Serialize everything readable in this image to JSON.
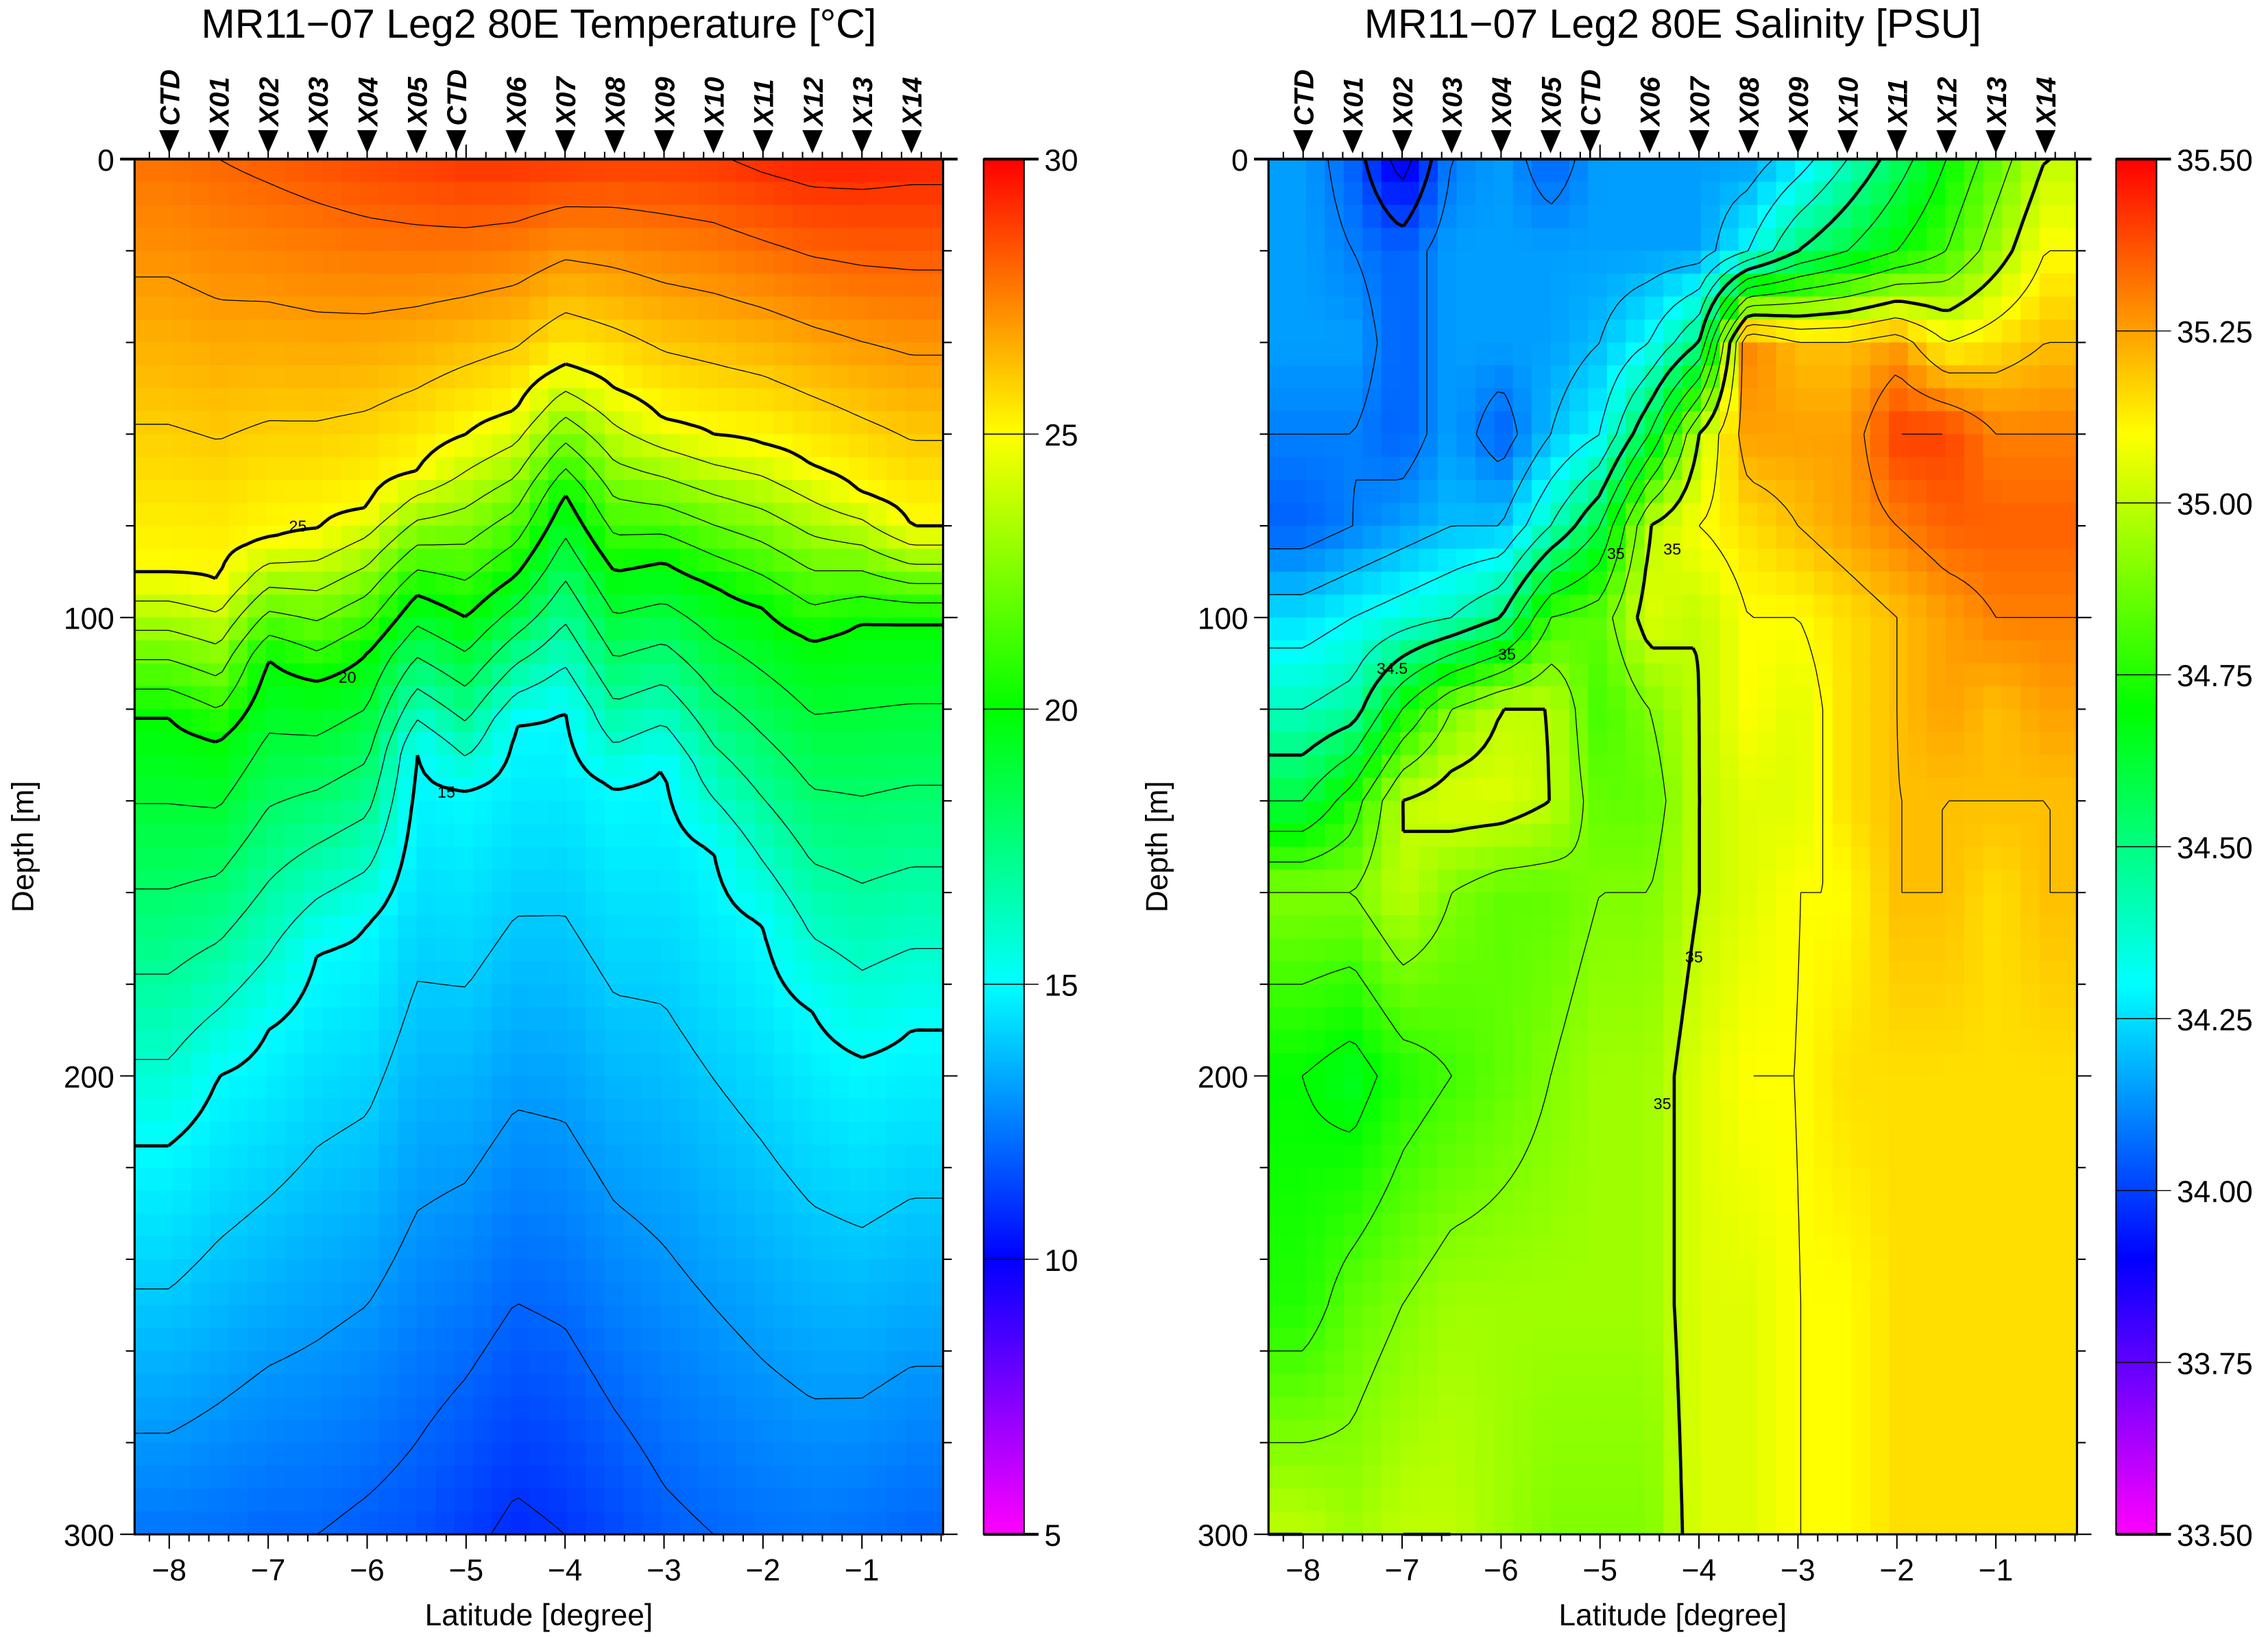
{
  "chart_data": [
    {
      "type": "heatmap",
      "title": "MR11−07 Leg2  80E  Temperature [°C]",
      "xlabel": "Latitude [degree]",
      "ylabel": "Depth [m]",
      "xlim": [
        -8.35,
        -0.18
      ],
      "ylim": [
        300,
        0
      ],
      "x_ticks": [
        -8,
        -7,
        -6,
        -5,
        -4,
        -3,
        -2,
        -1
      ],
      "x_tick_labels": [
        "−8",
        "−7",
        "−6",
        "−5",
        "−4",
        "−3",
        "−2",
        "−1"
      ],
      "y_ticks": [
        0,
        100,
        200,
        300
      ],
      "y_tick_labels": [
        "0",
        "100",
        "200",
        "300"
      ],
      "colorbar": {
        "range": [
          5,
          30
        ],
        "ticks": [
          30,
          25,
          20,
          15,
          10,
          5
        ],
        "tick_labels": [
          "30",
          "25",
          "20",
          "15",
          "10",
          "5"
        ]
      },
      "colormap": [
        "#ff00ff",
        "#0000ff",
        "#00ffff",
        "#00ff00",
        "#ffff00",
        "#ff8000",
        "#ff0000"
      ],
      "stations": [
        {
          "name": "CTD",
          "lat": -8.0
        },
        {
          "name": "X01",
          "lat": -7.5
        },
        {
          "name": "X02",
          "lat": -7.0
        },
        {
          "name": "X03",
          "lat": -6.5
        },
        {
          "name": "X04",
          "lat": -6.0
        },
        {
          "name": "X05",
          "lat": -5.5
        },
        {
          "name": "CTD",
          "lat": -5.1
        },
        {
          "name": "X06",
          "lat": -4.5
        },
        {
          "name": "X07",
          "lat": -4.0
        },
        {
          "name": "X08",
          "lat": -3.5
        },
        {
          "name": "X09",
          "lat": -3.0
        },
        {
          "name": "X10",
          "lat": -2.5
        },
        {
          "name": "X11",
          "lat": -2.0
        },
        {
          "name": "X12",
          "lat": -1.5
        },
        {
          "name": "X13",
          "lat": -1.0
        },
        {
          "name": "X14",
          "lat": -0.5
        }
      ],
      "contour_interval": 1,
      "bold_contours": [
        15,
        20,
        25
      ],
      "contour_labels": [
        "25",
        "20",
        "15"
      ],
      "data": {
        "lat": [
          -8,
          -7.5,
          -7,
          -6.5,
          -6,
          -5.5,
          -5,
          -4.5,
          -4,
          -3.5,
          -3,
          -2.5,
          -2,
          -1.5,
          -1,
          -0.5
        ],
        "surface_temp": [
          27.8,
          28,
          28.2,
          28.4,
          28.6,
          28.8,
          29,
          29,
          28.9,
          28.8,
          28.8,
          28.9,
          29.2,
          29.4,
          29.4,
          29.3
        ],
        "isotherm_depth_25": [
          90,
          92,
          83,
          81,
          76,
          68,
          60,
          55,
          45,
          50,
          57,
          60,
          62,
          67,
          73,
          80
        ],
        "isotherm_depth_20": [
          122,
          127,
          109,
          114,
          108,
          95,
          100,
          91,
          73,
          90,
          88,
          93,
          98,
          105,
          101,
          101
        ],
        "isotherm_depth_15": [
          215,
          200,
          190,
          173,
          167,
          129,
          138,
          123,
          120,
          137,
          132,
          151,
          167,
          186,
          196,
          190
        ],
        "temp_300m": [
          12.3,
          12.2,
          12,
          12,
          11.8,
          11.6,
          11.2,
          10.8,
          11,
          11.4,
          11.8,
          12,
          12.2,
          12.3,
          12.2,
          12
        ]
      }
    },
    {
      "type": "heatmap",
      "title": "MR11−07 Leg2  80E  Salinity [PSU]",
      "xlabel": "Latitude [degree]",
      "ylabel": "Depth [m]",
      "xlim": [
        -8.35,
        -0.18
      ],
      "ylim": [
        300,
        0
      ],
      "x_ticks": [
        -8,
        -7,
        -6,
        -5,
        -4,
        -3,
        -2,
        -1
      ],
      "x_tick_labels": [
        "−8",
        "−7",
        "−6",
        "−5",
        "−4",
        "−3",
        "−2",
        "−1"
      ],
      "y_ticks": [
        0,
        100,
        200,
        300
      ],
      "y_tick_labels": [
        "0",
        "100",
        "200",
        "300"
      ],
      "colorbar": {
        "range": [
          33.5,
          35.5
        ],
        "ticks": [
          35.5,
          35.25,
          35.0,
          34.75,
          34.5,
          34.25,
          34.0,
          33.75,
          33.5
        ],
        "tick_labels": [
          "35.50",
          "35.25",
          "35.00",
          "34.75",
          "34.50",
          "34.25",
          "34.00",
          "33.75",
          "33.50"
        ]
      },
      "colormap": [
        "#ff00ff",
        "#0000ff",
        "#00ffff",
        "#00ff00",
        "#ffff00",
        "#ff8000",
        "#ff0000"
      ],
      "stations": [
        {
          "name": "CTD",
          "lat": -8.0
        },
        {
          "name": "X01",
          "lat": -7.5
        },
        {
          "name": "X02",
          "lat": -7.0
        },
        {
          "name": "X03",
          "lat": -6.5
        },
        {
          "name": "X04",
          "lat": -6.0
        },
        {
          "name": "X05",
          "lat": -5.5
        },
        {
          "name": "CTD",
          "lat": -5.1
        },
        {
          "name": "X06",
          "lat": -4.5
        },
        {
          "name": "X07",
          "lat": -4.0
        },
        {
          "name": "X08",
          "lat": -3.5
        },
        {
          "name": "X09",
          "lat": -3.0
        },
        {
          "name": "X10",
          "lat": -2.5
        },
        {
          "name": "X11",
          "lat": -2.0
        },
        {
          "name": "X12",
          "lat": -1.5
        },
        {
          "name": "X13",
          "lat": -1.0
        },
        {
          "name": "X14",
          "lat": -0.5
        }
      ],
      "contour_interval": 0.1,
      "bold_contours": [
        34.0,
        34.5,
        35.0
      ],
      "contour_labels": [
        "34.5",
        "35",
        "35",
        "35",
        "35",
        "35"
      ],
      "data": {
        "lat": [
          -8,
          -7.5,
          -7,
          -6.5,
          -6,
          -5.5,
          -5,
          -4.5,
          -4,
          -3.5,
          -3,
          -2.5,
          -2,
          -1.5,
          -1,
          -0.5
        ],
        "depth": [
          0,
          20,
          40,
          60,
          80,
          100,
          120,
          140,
          160,
          200,
          250,
          300
        ],
        "salinity": [
          [
            34.15,
            34.15,
            34.15,
            34.1,
            34.05,
            34.25,
            34.4,
            34.6,
            34.9,
            34.7,
            34.75,
            35.0
          ],
          [
            34.05,
            34.1,
            34.15,
            34.1,
            34.1,
            34.3,
            34.45,
            34.75,
            34.9,
            34.65,
            34.85,
            34.95
          ],
          [
            33.85,
            34.05,
            34.05,
            34.05,
            34.15,
            34.35,
            34.7,
            35.0,
            35.0,
            34.75,
            34.9,
            35.0
          ],
          [
            34.1,
            34.15,
            34.15,
            34.15,
            34.2,
            34.4,
            34.9,
            35.05,
            34.9,
            34.8,
            34.95,
            35.0
          ],
          [
            34.15,
            34.15,
            34.15,
            34.05,
            34.2,
            34.5,
            35.0,
            35.05,
            34.85,
            34.85,
            34.95,
            34.95
          ],
          [
            34.05,
            34.15,
            34.15,
            34.2,
            34.4,
            34.8,
            35.0,
            35.0,
            34.85,
            34.9,
            34.95,
            34.9
          ],
          [
            34.15,
            34.15,
            34.2,
            34.3,
            34.6,
            34.85,
            34.8,
            34.85,
            34.9,
            34.95,
            34.95,
            34.9
          ],
          [
            34.15,
            34.15,
            34.3,
            34.6,
            35.0,
            35.05,
            34.9,
            34.85,
            34.9,
            34.95,
            34.95,
            34.9
          ],
          [
            34.15,
            34.15,
            34.5,
            35.0,
            35.1,
            35.0,
            35.0,
            35.0,
            35.0,
            35.05,
            35.05,
            35.05
          ],
          [
            34.15,
            34.3,
            35.3,
            35.25,
            35.15,
            35.1,
            35.1,
            35.05,
            35.05,
            35.1,
            35.05,
            35.05
          ],
          [
            34.25,
            34.5,
            35.2,
            35.25,
            35.2,
            35.1,
            35.05,
            35.05,
            35.1,
            35.1,
            35.1,
            35.1
          ],
          [
            34.4,
            34.6,
            35.2,
            35.25,
            35.25,
            35.15,
            35.15,
            35.15,
            35.1,
            35.15,
            35.1,
            35.1
          ],
          [
            34.55,
            34.7,
            35.25,
            35.4,
            35.3,
            35.2,
            35.2,
            35.2,
            35.2,
            35.15,
            35.15,
            35.15
          ],
          [
            34.7,
            34.8,
            35.1,
            35.4,
            35.35,
            35.25,
            35.25,
            35.2,
            35.2,
            35.15,
            35.15,
            35.15
          ],
          [
            34.85,
            34.95,
            35.15,
            35.3,
            35.35,
            35.3,
            35.2,
            35.2,
            35.15,
            35.15,
            35.15,
            35.15
          ],
          [
            35.0,
            35.1,
            35.2,
            35.3,
            35.35,
            35.3,
            35.25,
            35.2,
            35.2,
            35.15,
            35.15,
            35.15
          ]
        ]
      }
    }
  ]
}
